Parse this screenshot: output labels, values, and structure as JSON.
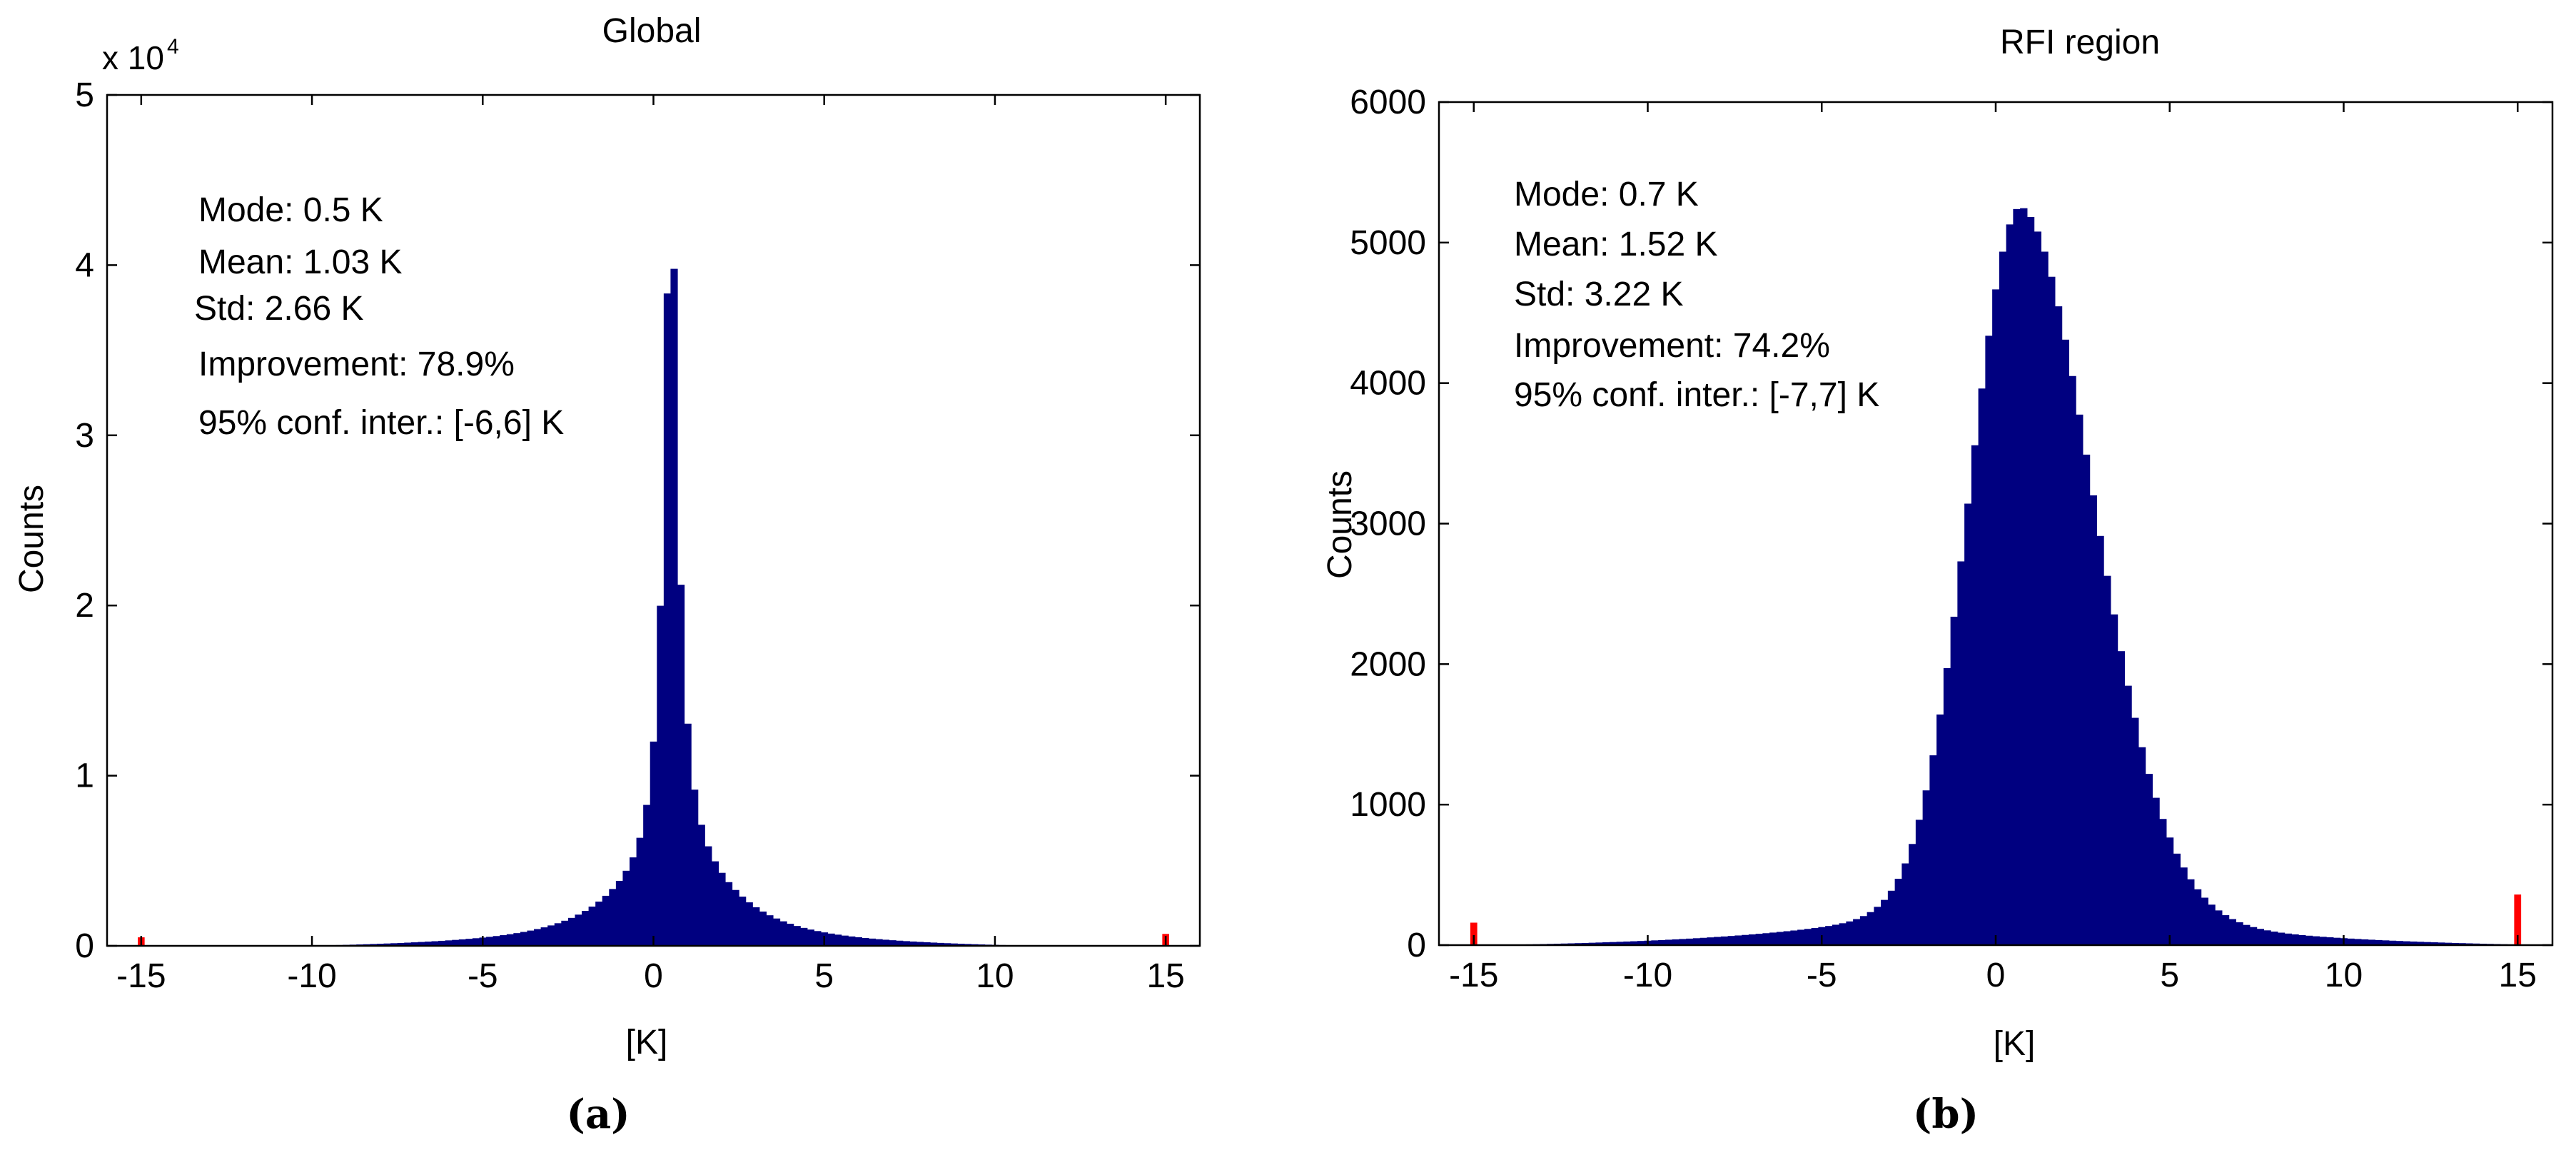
{
  "chart_data": [
    {
      "type": "bar",
      "title": "Global",
      "xlabel": "[K]",
      "ylabel": "Counts",
      "y_exponent_label": "x 10",
      "y_exponent": "4",
      "xlim": [
        -16,
        16
      ],
      "ylim": [
        0,
        50000
      ],
      "xticks": [
        -15,
        -10,
        -5,
        0,
        5,
        10,
        15
      ],
      "yticks": [
        0,
        10000,
        20000,
        30000,
        40000,
        50000
      ],
      "ytick_labels": [
        "0",
        "1",
        "2",
        "3",
        "4",
        "5"
      ],
      "grid": false,
      "bin_width": 0.2,
      "bar_color": "#000080",
      "outlier_color": "#ff0000",
      "outliers": [
        {
          "x": -15,
          "value": 500
        },
        {
          "x": 15,
          "value": 700
        }
      ],
      "stats": [
        "Mode: 0.5 K",
        "Mean: 1.03 K",
        "Std: 2.66 K",
        "Improvement: 78.9%",
        "95% conf. inter.: [-6,6] K"
      ],
      "caption": "(a)"
    },
    {
      "type": "bar",
      "title": "RFI region",
      "xlabel": "[K]",
      "ylabel": "Counts",
      "xlim": [
        -16,
        16
      ],
      "ylim": [
        0,
        6000
      ],
      "xticks": [
        -15,
        -10,
        -5,
        0,
        5,
        10,
        15
      ],
      "yticks": [
        0,
        1000,
        2000,
        3000,
        4000,
        5000,
        6000
      ],
      "ytick_labels": [
        "0",
        "1000",
        "2000",
        "3000",
        "4000",
        "5000",
        "6000"
      ],
      "grid": false,
      "bin_width": 0.2,
      "bar_color": "#000080",
      "outlier_color": "#ff0000",
      "outliers": [
        {
          "x": -15,
          "value": 160
        },
        {
          "x": 15,
          "value": 360
        }
      ],
      "stats": [
        "Mode: 0.7 K",
        "Mean: 1.52 K",
        "Std: 3.22 K",
        "Improvement: 74.2%",
        "95% conf. inter.: [-7,7] K"
      ],
      "caption": "(b)"
    }
  ]
}
